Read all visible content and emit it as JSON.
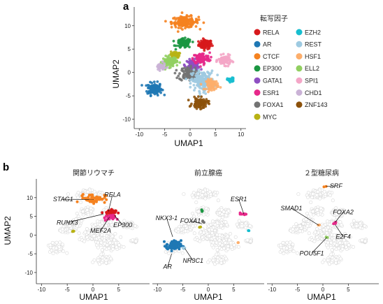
{
  "panel_labels": {
    "a": "a",
    "b": "b"
  },
  "chart_data": [
    {
      "type": "scatter",
      "panel": "a",
      "xlabel": "UMAP1",
      "ylabel": "UMAP2",
      "xlim": [
        -11,
        11
      ],
      "ylim": [
        -12,
        14
      ],
      "xticks": [
        -10,
        -5,
        0,
        5,
        10
      ],
      "yticks": [
        10,
        5,
        0,
        -5,
        -10
      ],
      "legend_title": "転写因子",
      "legend_position": "right",
      "series": [
        {
          "name": "RELA",
          "color": "#d7191c",
          "center": [
            3.0,
            6.0
          ],
          "spread": [
            1.2,
            0.9
          ],
          "n": 90
        },
        {
          "name": "AR",
          "color": "#1f78b4",
          "center": [
            -7.0,
            -3.5
          ],
          "spread": [
            1.3,
            1.2
          ],
          "n": 120
        },
        {
          "name": "CTCF",
          "color": "#f58220",
          "center": [
            -1.0,
            10.8
          ],
          "spread": [
            2.4,
            1.1
          ],
          "n": 170
        },
        {
          "name": "EP300",
          "color": "#1a9641",
          "center": [
            -1.2,
            6.2
          ],
          "spread": [
            1.3,
            0.9
          ],
          "n": 90
        },
        {
          "name": "GATA1",
          "color": "#8e4fc2",
          "center": [
            0.5,
            1.6
          ],
          "spread": [
            1.3,
            1.0
          ],
          "n": 90
        },
        {
          "name": "ESR1",
          "color": "#e7298a",
          "center": [
            2.2,
            3.0
          ],
          "spread": [
            1.5,
            1.1
          ],
          "n": 110
        },
        {
          "name": "FOXA1",
          "color": "#737373",
          "center": [
            -0.4,
            -0.3
          ],
          "spread": [
            1.6,
            1.3
          ],
          "n": 110
        },
        {
          "name": "MYC",
          "color": "#b8b214",
          "center": [
            -3.0,
            3.8
          ],
          "spread": [
            0.8,
            0.6
          ],
          "n": 40
        },
        {
          "name": "EZH2",
          "color": "#17becf",
          "center": [
            8.0,
            -1.6
          ],
          "spread": [
            0.6,
            0.4
          ],
          "n": 40
        },
        {
          "name": "REST",
          "color": "#9ecae1",
          "center": [
            2.5,
            -1.8
          ],
          "spread": [
            2.0,
            1.9
          ],
          "n": 180
        },
        {
          "name": "HSF1",
          "color": "#fdae6b",
          "center": [
            4.4,
            -2.6
          ],
          "spread": [
            1.1,
            1.0
          ],
          "n": 70
        },
        {
          "name": "ELL2",
          "color": "#91cf60",
          "center": [
            -4.0,
            2.3
          ],
          "spread": [
            1.3,
            1.0
          ],
          "n": 90
        },
        {
          "name": "SPI1",
          "color": "#f4a6c7",
          "center": [
            6.8,
            2.6
          ],
          "spread": [
            1.1,
            0.9
          ],
          "n": 90
        },
        {
          "name": "CHD1",
          "color": "#cab2d6",
          "center": [
            -5.8,
            1.2
          ],
          "spread": [
            0.8,
            0.7
          ],
          "n": 40
        },
        {
          "name": "ZNF143",
          "color": "#8c510a",
          "center": [
            2.0,
            -6.6
          ],
          "spread": [
            1.4,
            1.0
          ],
          "n": 90
        }
      ]
    },
    {
      "type": "scatter",
      "panel": "b",
      "title": "関節リウマチ",
      "xlabel": "UMAP1",
      "ylabel": "UMAP2",
      "xlim": [
        -11,
        11
      ],
      "ylim": [
        -13,
        15
      ],
      "xticks": [
        -10,
        -5,
        0,
        5
      ],
      "yticks": [
        10,
        5,
        0,
        -5,
        -10
      ],
      "background_color": "#d9d9d9",
      "highlights": [
        {
          "name": "CTCF",
          "color": "#f58220",
          "center": [
            0.0,
            9.8
          ],
          "spread": [
            2.0,
            1.0
          ],
          "n": 60
        },
        {
          "name": "RELA",
          "color": "#d7191c",
          "center": [
            3.2,
            6.0
          ],
          "spread": [
            1.0,
            0.7
          ],
          "n": 40
        },
        {
          "name": "ESR1",
          "color": "#e7298a",
          "center": [
            3.2,
            4.6
          ],
          "spread": [
            0.9,
            0.6
          ],
          "n": 18
        },
        {
          "name": "MYC",
          "color": "#b8b214",
          "center": [
            -3.8,
            1.0
          ],
          "spread": [
            0.2,
            0.2
          ],
          "n": 4
        }
      ],
      "annotations": [
        {
          "text": "STAG1",
          "point": [
            0.2,
            9.5
          ],
          "label_at": [
            -5.8,
            9.0
          ]
        },
        {
          "text": "RELA",
          "point": [
            3.0,
            6.3
          ],
          "label_at": [
            3.8,
            10.2
          ]
        },
        {
          "text": "RUNX3",
          "point": [
            2.0,
            5.6
          ],
          "label_at": [
            -5.0,
            2.8
          ]
        },
        {
          "text": "MEF2A",
          "point": [
            3.2,
            4.8
          ],
          "label_at": [
            1.5,
            0.6
          ]
        },
        {
          "text": "EP300",
          "point": [
            4.2,
            5.2
          ],
          "label_at": [
            5.8,
            2.1
          ]
        }
      ]
    },
    {
      "type": "scatter",
      "panel": "b",
      "title": "前立腺癌",
      "xlabel": "UMAP1",
      "xlim": [
        -11,
        11
      ],
      "ylim": [
        -13,
        15
      ],
      "xticks": [
        -10,
        -5,
        0,
        5
      ],
      "background_color": "#d9d9d9",
      "highlights": [
        {
          "name": "AR",
          "color": "#1f78b4",
          "center": [
            -6.8,
            -2.8
          ],
          "spread": [
            1.2,
            1.1
          ],
          "n": 70
        },
        {
          "name": "EP300",
          "color": "#1a9641",
          "center": [
            -1.2,
            6.5
          ],
          "spread": [
            0.2,
            0.2
          ],
          "n": 4
        },
        {
          "name": "ESR1",
          "color": "#e7298a",
          "center": [
            7.0,
            5.6
          ],
          "spread": [
            0.5,
            0.3
          ],
          "n": 8
        },
        {
          "name": "EZH2",
          "color": "#17becf",
          "center": [
            7.8,
            1.2
          ],
          "spread": [
            0.15,
            0.15
          ],
          "n": 2
        },
        {
          "name": "FOXA1",
          "color": "#737373",
          "center": [
            -1.0,
            3.6
          ],
          "spread": [
            0.2,
            0.2
          ],
          "n": 3
        },
        {
          "name": "MYC",
          "color": "#b8b214",
          "center": [
            -1.6,
            2.2
          ],
          "spread": [
            0.15,
            0.15
          ],
          "n": 2
        },
        {
          "name": "HSF1",
          "color": "#fdae6b",
          "center": [
            5.8,
            -2.0
          ],
          "spread": [
            0.15,
            0.15
          ],
          "n": 2
        },
        {
          "name": "REST",
          "color": "#9ecae1",
          "center": [
            -4.8,
            -3.4
          ],
          "spread": [
            0.2,
            0.2
          ],
          "n": 3
        }
      ],
      "annotations": [
        {
          "text": "NKX3-1",
          "point": [
            -7.0,
            -0.5
          ],
          "label_at": [
            -8.2,
            4.0
          ]
        },
        {
          "text": "ESR1",
          "point": [
            7.0,
            5.6
          ],
          "label_at": [
            6.0,
            9.0
          ]
        },
        {
          "text": "FOXA1",
          "point": [
            -1.2,
            3.0
          ],
          "label_at": [
            -3.5,
            3.2
          ]
        },
        {
          "text": "AR",
          "point": [
            -7.2,
            -5.0
          ],
          "label_at": [
            -8.0,
            -9.0
          ]
        },
        {
          "text": "NR3C1",
          "point": [
            -4.6,
            -3.6
          ],
          "label_at": [
            -3.0,
            -7.4
          ]
        }
      ]
    },
    {
      "type": "scatter",
      "panel": "b",
      "title": "２型糖尿病",
      "xlabel": "UMAP1",
      "xlim": [
        -11,
        11
      ],
      "ylim": [
        -13,
        15
      ],
      "xticks": [
        -10,
        -5,
        0,
        5
      ],
      "background_color": "#d9d9d9",
      "highlights": [
        {
          "name": "CTCF",
          "color": "#f58220",
          "center": [
            0.5,
            13.0
          ],
          "spread": [
            0.15,
            0.15
          ],
          "n": 2
        },
        {
          "name": "ESR1",
          "color": "#e7298a",
          "center": [
            2.4,
            3.2
          ],
          "spread": [
            0.25,
            0.2
          ],
          "n": 4
        },
        {
          "name": "HSF1",
          "color": "#fdae6b",
          "center": [
            -0.8,
            2.6
          ],
          "spread": [
            0.15,
            0.15
          ],
          "n": 2
        },
        {
          "name": "ELL2",
          "color": "#91cf60",
          "center": [
            0.8,
            -0.6
          ],
          "spread": [
            0.15,
            0.15
          ],
          "n": 2
        }
      ],
      "annotations": [
        {
          "text": "SRF",
          "point": [
            0.6,
            13.0
          ],
          "label_at": [
            2.6,
            12.6
          ]
        },
        {
          "text": "SMAD1",
          "point": [
            -0.8,
            2.6
          ],
          "label_at": [
            -6.2,
            6.6
          ]
        },
        {
          "text": "FOXA2",
          "point": [
            2.4,
            3.4
          ],
          "label_at": [
            4.0,
            5.6
          ]
        },
        {
          "text": "E2F4",
          "point": [
            2.4,
            2.8
          ],
          "label_at": [
            4.0,
            -1.0
          ]
        },
        {
          "text": "POU5F1",
          "point": [
            0.8,
            -0.6
          ],
          "label_at": [
            -2.2,
            -5.4
          ]
        }
      ]
    }
  ]
}
